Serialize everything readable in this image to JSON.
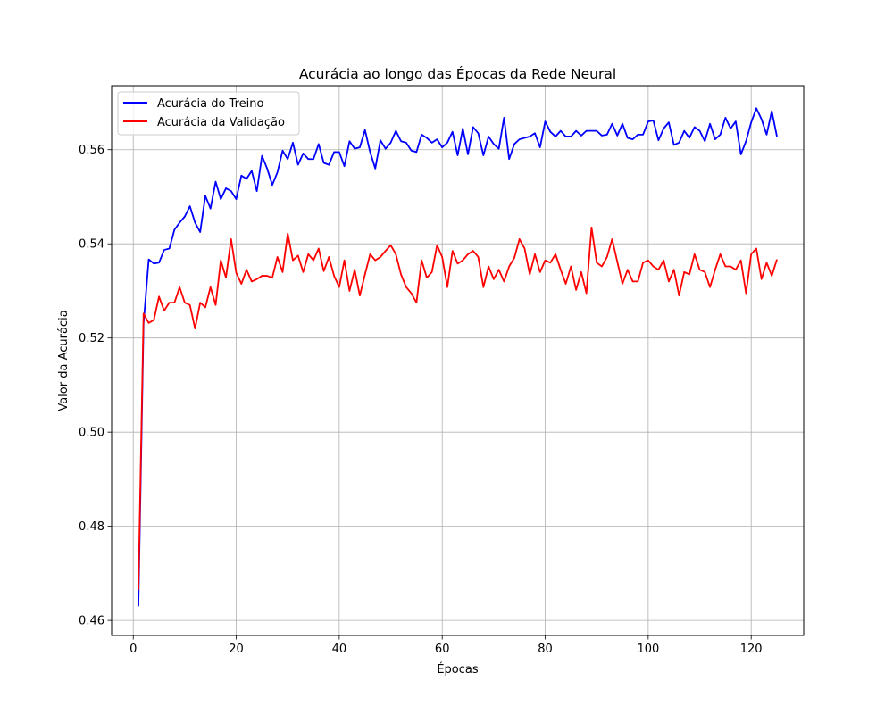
{
  "chart_data": {
    "type": "line",
    "title": "Acurácia ao longo das Épocas da Rede Neural",
    "xlabel": "Épocas",
    "ylabel": "Valor da Acurácia",
    "xlim": [
      -4.2,
      130.2
    ],
    "ylim": [
      0.4568,
      0.5736
    ],
    "xticks": [
      0,
      20,
      40,
      60,
      80,
      100,
      120
    ],
    "xtick_labels": [
      "0",
      "20",
      "40",
      "60",
      "80",
      "100",
      "120"
    ],
    "yticks": [
      0.46,
      0.48,
      0.5,
      0.52,
      0.54,
      0.56
    ],
    "ytick_labels": [
      "0.46",
      "0.48",
      "0.50",
      "0.52",
      "0.54",
      "0.56"
    ],
    "grid": true,
    "legend_position": "top-left",
    "x": [
      1,
      2,
      3,
      4,
      5,
      6,
      7,
      8,
      9,
      10,
      11,
      12,
      13,
      14,
      15,
      16,
      17,
      18,
      19,
      20,
      21,
      22,
      23,
      24,
      25,
      26,
      27,
      28,
      29,
      30,
      31,
      32,
      33,
      34,
      35,
      36,
      37,
      38,
      39,
      40,
      41,
      42,
      43,
      44,
      45,
      46,
      47,
      48,
      49,
      50,
      51,
      52,
      53,
      54,
      55,
      56,
      57,
      58,
      59,
      60,
      61,
      62,
      63,
      64,
      65,
      66,
      67,
      68,
      69,
      70,
      71,
      72,
      73,
      74,
      75,
      76,
      77,
      78,
      79,
      80,
      81,
      82,
      83,
      84,
      85,
      86,
      87,
      88,
      89,
      90,
      91,
      92,
      93,
      94,
      95,
      96,
      97,
      98,
      99,
      100,
      101,
      102,
      103,
      104,
      105,
      106,
      107,
      108,
      109,
      110,
      111,
      112,
      113,
      114,
      115,
      116,
      117,
      118,
      119,
      120,
      121,
      122,
      123,
      124,
      125
    ],
    "series": [
      {
        "name": "Acurácia do Treino",
        "color": "#0000ff",
        "values": [
          0.463,
          0.523,
          0.5367,
          0.5358,
          0.536,
          0.5387,
          0.539,
          0.543,
          0.5445,
          0.5458,
          0.548,
          0.5445,
          0.5425,
          0.5502,
          0.5475,
          0.5532,
          0.5495,
          0.5518,
          0.5512,
          0.5495,
          0.5545,
          0.5538,
          0.5555,
          0.5512,
          0.5587,
          0.556,
          0.5525,
          0.5552,
          0.5598,
          0.558,
          0.5615,
          0.5568,
          0.5592,
          0.558,
          0.558,
          0.5612,
          0.5572,
          0.5568,
          0.5595,
          0.5595,
          0.5565,
          0.5618,
          0.5602,
          0.5605,
          0.5642,
          0.5595,
          0.556,
          0.562,
          0.5602,
          0.5615,
          0.564,
          0.5618,
          0.5615,
          0.5598,
          0.5595,
          0.5632,
          0.5625,
          0.5615,
          0.5622,
          0.5605,
          0.5615,
          0.5638,
          0.5588,
          0.5645,
          0.559,
          0.5648,
          0.5635,
          0.5588,
          0.5628,
          0.5612,
          0.5602,
          0.5668,
          0.558,
          0.5612,
          0.5622,
          0.5625,
          0.5628,
          0.5635,
          0.5605,
          0.566,
          0.5638,
          0.5628,
          0.564,
          0.5628,
          0.5628,
          0.564,
          0.563,
          0.564,
          0.564,
          0.564,
          0.563,
          0.5632,
          0.5655,
          0.563,
          0.5655,
          0.5625,
          0.5622,
          0.5632,
          0.5632,
          0.566,
          0.5662,
          0.562,
          0.5645,
          0.5658,
          0.561,
          0.5615,
          0.564,
          0.5625,
          0.5648,
          0.564,
          0.5618,
          0.5655,
          0.5622,
          0.5632,
          0.5668,
          0.5645,
          0.566,
          0.559,
          0.5618,
          0.5658,
          0.5688,
          0.5665,
          0.5632,
          0.5682,
          0.5628
        ]
      },
      {
        "name": "Acurácia da Validação",
        "color": "#ff0000",
        "values": [
          0.4665,
          0.5252,
          0.5232,
          0.5238,
          0.5288,
          0.5258,
          0.5275,
          0.5275,
          0.5308,
          0.5275,
          0.527,
          0.522,
          0.5275,
          0.5265,
          0.5308,
          0.527,
          0.5365,
          0.5328,
          0.541,
          0.5338,
          0.5315,
          0.5345,
          0.532,
          0.5325,
          0.5332,
          0.5332,
          0.5328,
          0.5372,
          0.534,
          0.5422,
          0.5365,
          0.5375,
          0.534,
          0.5378,
          0.5365,
          0.539,
          0.5342,
          0.5372,
          0.5332,
          0.5308,
          0.5365,
          0.53,
          0.5345,
          0.529,
          0.5335,
          0.5378,
          0.5365,
          0.5372,
          0.5385,
          0.5397,
          0.5378,
          0.5335,
          0.5308,
          0.5295,
          0.5275,
          0.5365,
          0.5328,
          0.534,
          0.5397,
          0.5372,
          0.5308,
          0.5385,
          0.5358,
          0.5365,
          0.5378,
          0.5385,
          0.5372,
          0.5308,
          0.5352,
          0.5325,
          0.5345,
          0.532,
          0.5352,
          0.537,
          0.541,
          0.539,
          0.5335,
          0.5378,
          0.534,
          0.5365,
          0.536,
          0.5378,
          0.5345,
          0.5315,
          0.5352,
          0.5302,
          0.534,
          0.5295,
          0.5435,
          0.536,
          0.5352,
          0.5372,
          0.541,
          0.5362,
          0.5315,
          0.5345,
          0.532,
          0.532,
          0.536,
          0.5365,
          0.5352,
          0.5345,
          0.5365,
          0.532,
          0.5345,
          0.529,
          0.534,
          0.5335,
          0.5378,
          0.5345,
          0.534,
          0.5308,
          0.5345,
          0.5378,
          0.5352,
          0.5352,
          0.5345,
          0.5365,
          0.5295,
          0.5378,
          0.539,
          0.5325,
          0.536,
          0.5332,
          0.5367
        ]
      }
    ]
  }
}
